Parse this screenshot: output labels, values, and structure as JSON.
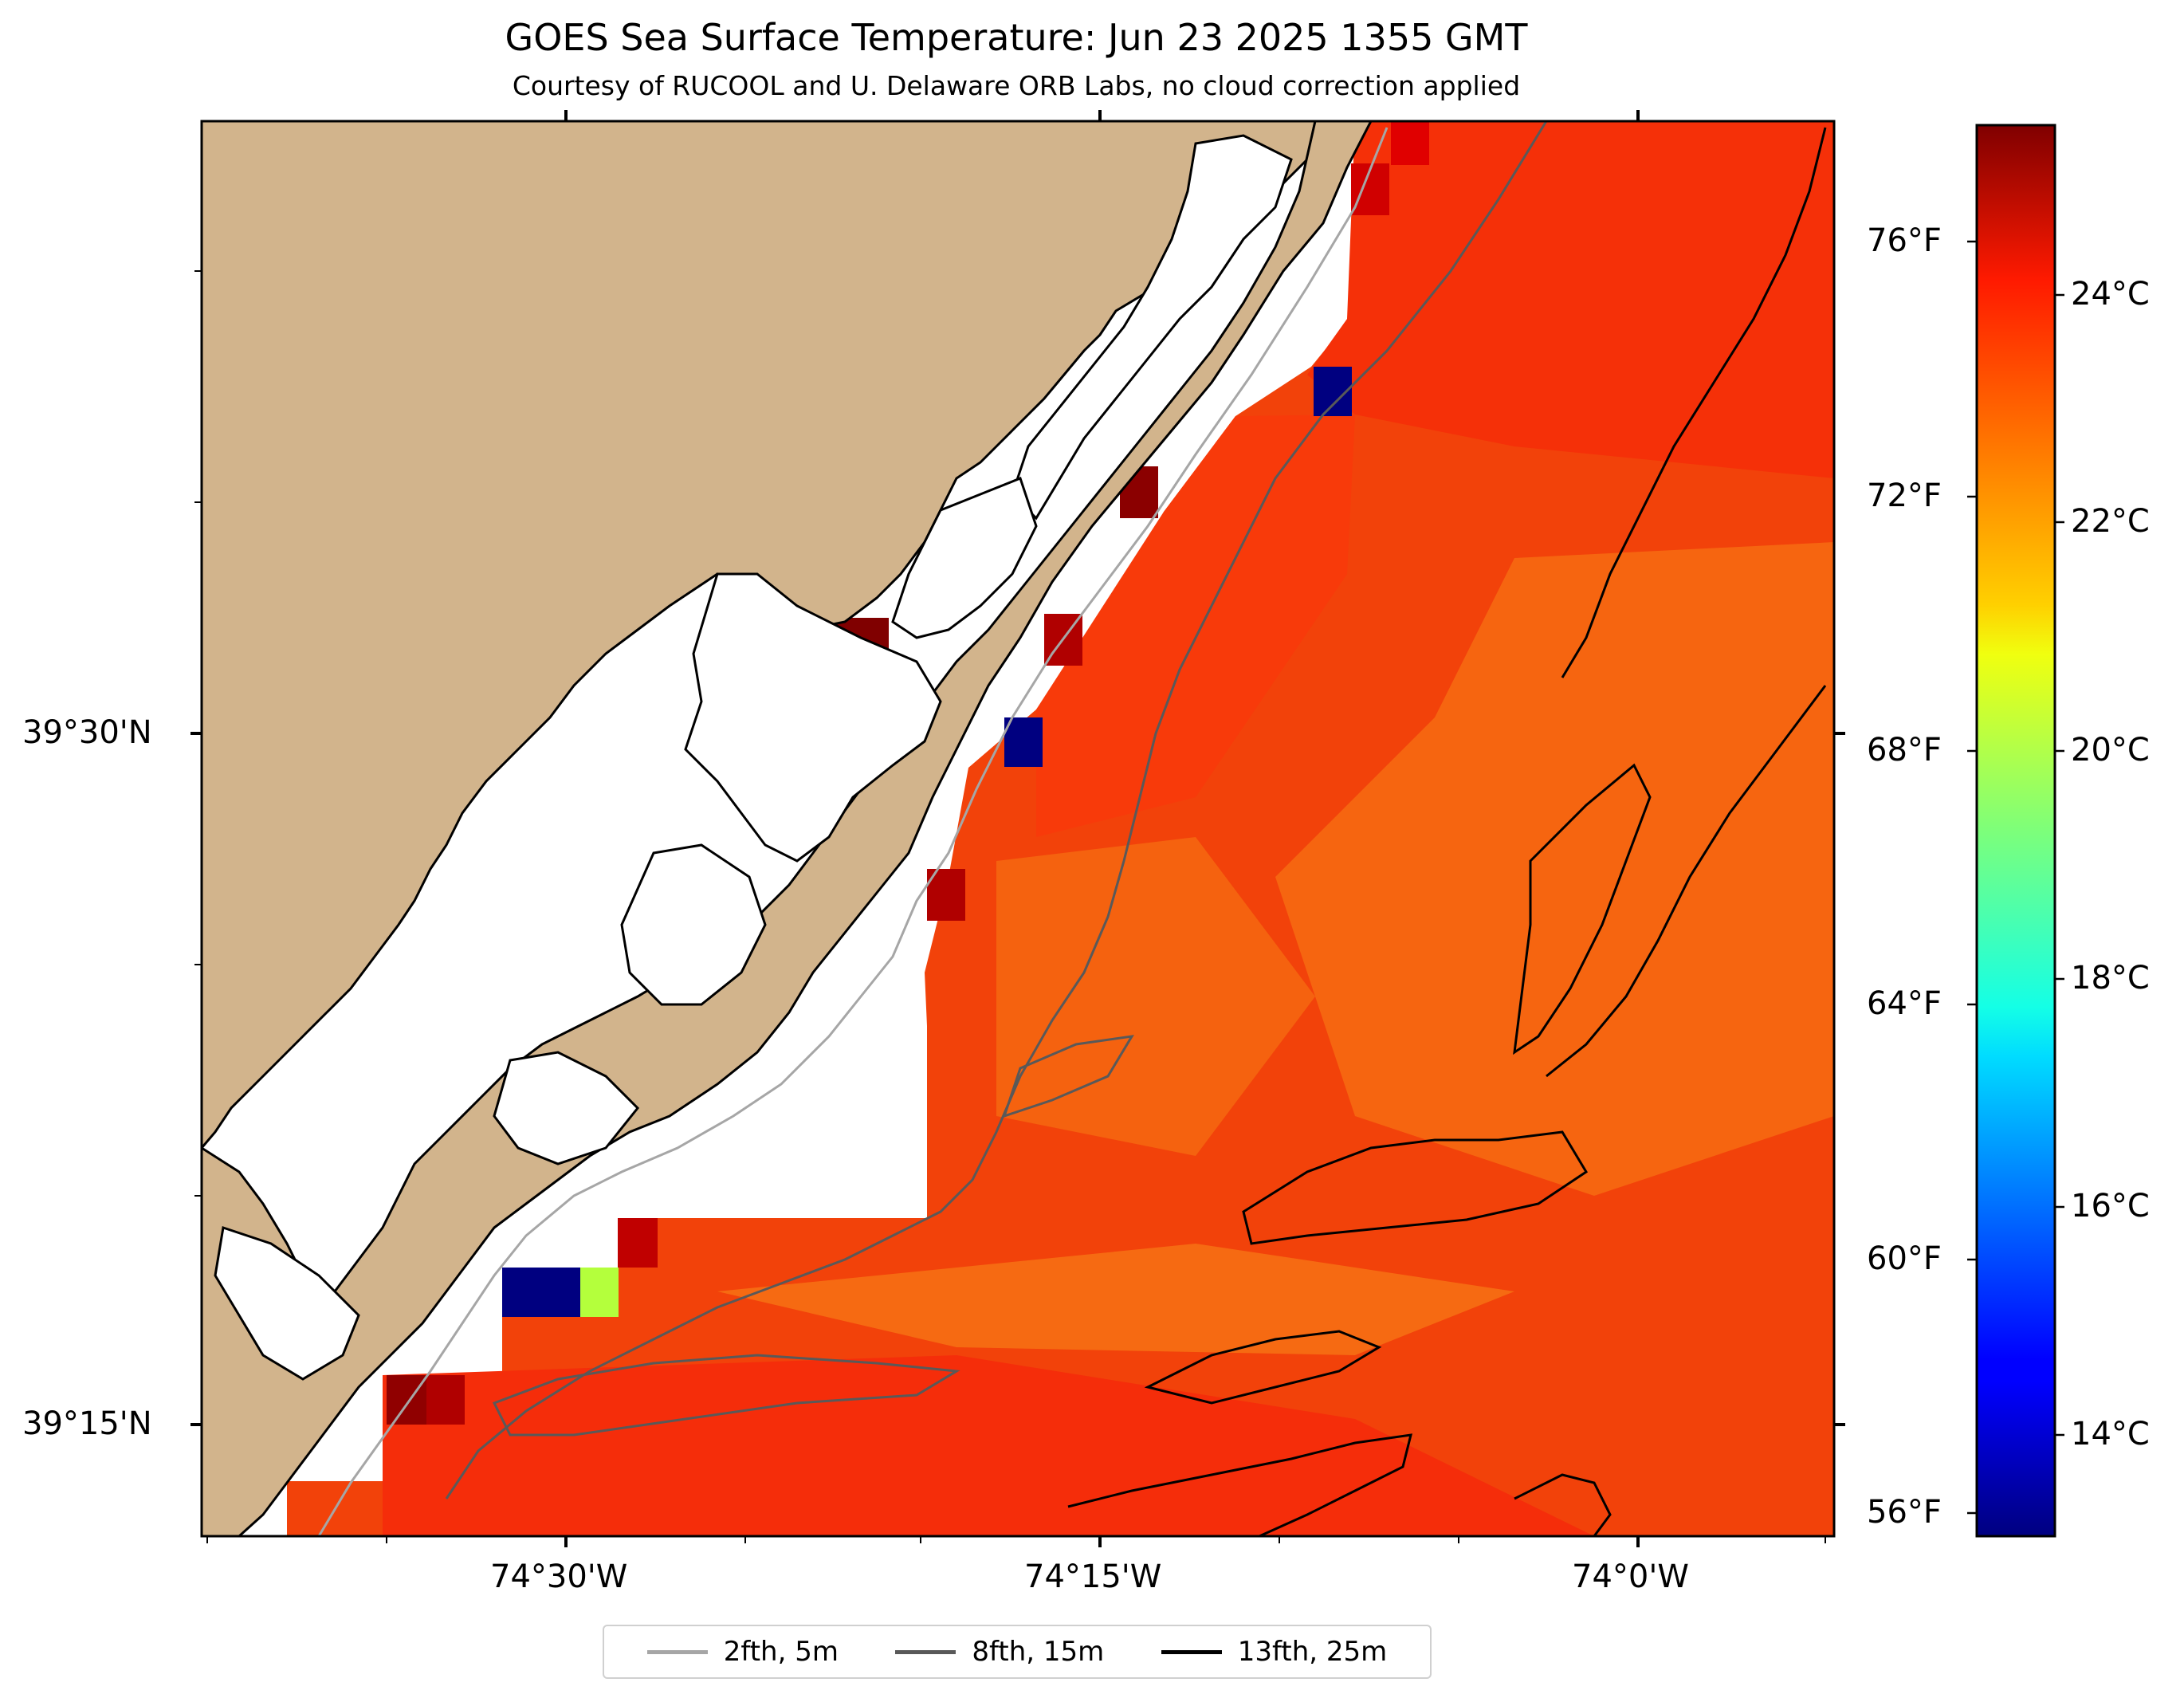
{
  "title": "GOES Sea Surface Temperature: Jun 23 2025 1355 GMT",
  "subtitle": "Courtesy of RUCOOL and U. Delaware ORB Labs, no cloud correction applied",
  "axes": {
    "x_ticks": [
      "74°30'W",
      "74°15'W",
      "74°0'W"
    ],
    "y_ticks": [
      "39°30'N",
      "39°15'N"
    ]
  },
  "colorbar": {
    "celsius_ticks": [
      "24°C",
      "22°C",
      "20°C",
      "18°C",
      "16°C",
      "14°C"
    ],
    "fahrenheit_ticks": [
      "76°F",
      "72°F",
      "68°F",
      "64°F",
      "60°F",
      "56°F"
    ],
    "range_c": [
      12.8,
      25.2
    ],
    "colormap": "jet"
  },
  "legend": [
    {
      "label": "2fth, 5m",
      "color": "#a6a6a6"
    },
    {
      "label": "8fth, 15m",
      "color": "#595959"
    },
    {
      "label": "13fth, 25m",
      "color": "#000000"
    }
  ],
  "colors": {
    "land": "#d2b48c",
    "no_data": "#ffffff"
  },
  "map": {
    "lon_range": [
      -74.6,
      -73.85
    ],
    "lat_range": [
      39.19,
      39.805
    ]
  }
}
